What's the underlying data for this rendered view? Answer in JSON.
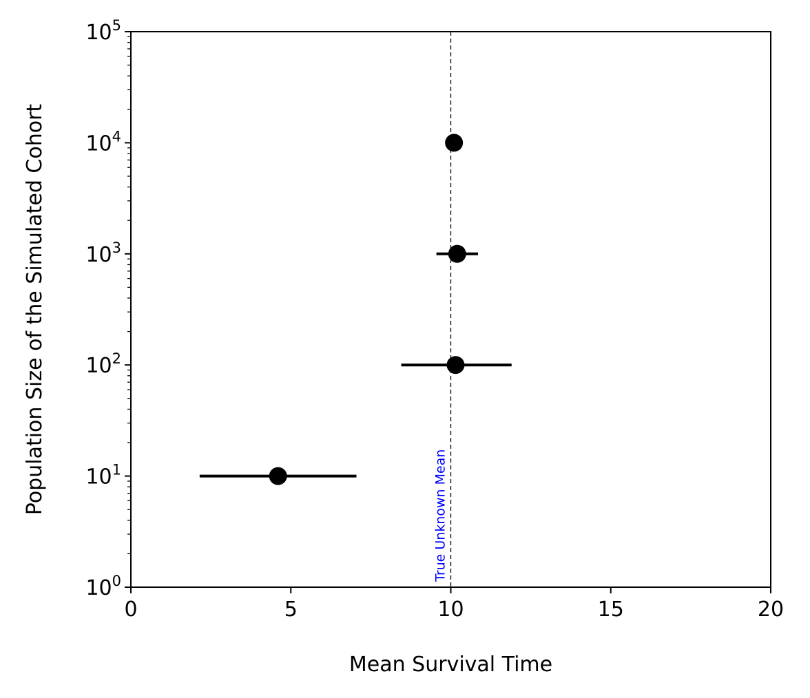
{
  "chart_data": {
    "type": "scatter",
    "title": "",
    "xlabel": "Mean Survival Time",
    "ylabel": "Population Size of the Simulated Cohort",
    "xlim": [
      0,
      20
    ],
    "ylim": [
      1,
      100000
    ],
    "yscale": "log",
    "grid": false,
    "legend": "none",
    "x_ticks": [
      0,
      5,
      10,
      15,
      20
    ],
    "x_tick_labels": [
      "0",
      "5",
      "10",
      "15",
      "20"
    ],
    "y_ticks": [
      1,
      10,
      100,
      1000,
      10000,
      100000
    ],
    "y_tick_labels": [
      {
        "base": "10",
        "exp": "0"
      },
      {
        "base": "10",
        "exp": "1"
      },
      {
        "base": "10",
        "exp": "2"
      },
      {
        "base": "10",
        "exp": "3"
      },
      {
        "base": "10",
        "exp": "4"
      },
      {
        "base": "10",
        "exp": "5"
      }
    ],
    "series": [
      {
        "marker_color": "#000000",
        "points": [
          {
            "x": 4.6,
            "y": 10,
            "x_low": 2.15,
            "x_high": 7.05
          },
          {
            "x": 10.15,
            "y": 100,
            "x_low": 8.45,
            "x_high": 11.9
          },
          {
            "x": 10.2,
            "y": 1000,
            "x_low": 9.55,
            "x_high": 10.85
          },
          {
            "x": 10.1,
            "y": 10000,
            "x_low": 10.1,
            "x_high": 10.1
          }
        ]
      }
    ],
    "reference_line": {
      "x": 10,
      "label": "True Unknown Mean",
      "line_color": "#000000",
      "label_color": "#0000ff"
    }
  }
}
